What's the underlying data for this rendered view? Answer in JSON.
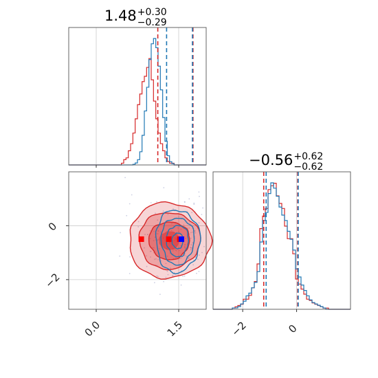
{
  "chart_data": {
    "type": "corner",
    "colors": {
      "red": "#d62728",
      "red_fill": "#f08080",
      "blue": "#1f77b4",
      "marker_red": "#ff0000",
      "marker_blue": "#0000ff",
      "grid": "#cccccc",
      "frame": "#555555"
    },
    "grid": true,
    "params": [
      {
        "title_value": "1.48",
        "title_plus": "+0.30",
        "title_minus": "−0.29",
        "range": [
          -0.5,
          2.0
        ],
        "ticks": [
          0.0,
          1.5
        ],
        "tick_labels": [
          "0.0",
          "1.5"
        ],
        "median": 1.48,
        "q_low": 1.19,
        "q_high": 1.78,
        "red_lines": [
          1.12,
          1.76
        ],
        "blue_lines": [
          1.28,
          1.75
        ],
        "red_hist": [
          0,
          0,
          0,
          0,
          0,
          0,
          0,
          0,
          0,
          0,
          0,
          0,
          0,
          0,
          0,
          0,
          0,
          0,
          0,
          0,
          0,
          0,
          0,
          1,
          3,
          4,
          8,
          12,
          18,
          26,
          34,
          40,
          47,
          50,
          55,
          60,
          48,
          36,
          26,
          18,
          12,
          8,
          4,
          2,
          1,
          1,
          0,
          0,
          0,
          0,
          0,
          0,
          0,
          0,
          0,
          0,
          0,
          0,
          0,
          0
        ],
        "blue_hist": [
          0,
          0,
          0,
          0,
          0,
          0,
          0,
          0,
          0,
          0,
          0,
          0,
          0,
          0,
          0,
          0,
          0,
          0,
          0,
          0,
          0,
          0,
          0,
          0,
          0,
          0,
          0,
          0,
          1,
          3,
          8,
          20,
          45,
          82,
          118,
          160,
          184,
          192,
          178,
          150,
          114,
          72,
          36,
          14,
          5,
          2,
          0,
          0,
          0,
          0,
          0,
          0,
          0,
          0,
          0,
          0,
          0,
          0,
          0,
          0
        ]
      },
      {
        "title_value": "−0.56",
        "title_plus": "+0.62",
        "title_minus": "−0.62",
        "range": [
          -3.1,
          2.0
        ],
        "ticks": [
          -2,
          0
        ],
        "tick_labels": [
          "−2",
          "0"
        ],
        "median": -0.56,
        "q_low": -1.18,
        "q_high": 0.06,
        "red_lines": [
          -1.22,
          0.04
        ],
        "blue_lines": [
          -1.13,
          0.06
        ],
        "red_hist": [
          0,
          0,
          0,
          0,
          0,
          0,
          0,
          1,
          2,
          3,
          4,
          8,
          8,
          11,
          17,
          22,
          36,
          64,
          74,
          80,
          95,
          98,
          100,
          90,
          84,
          80,
          66,
          56,
          56,
          44,
          24,
          20,
          16,
          12,
          8,
          7,
          5,
          4,
          3,
          2,
          1,
          1,
          0,
          0,
          0,
          0,
          0,
          0,
          0,
          0
        ],
        "blue_hist": [
          0,
          0,
          0,
          0,
          0,
          0,
          0,
          1,
          1,
          2,
          4,
          6,
          10,
          12,
          16,
          20,
          28,
          50,
          66,
          72,
          86,
          94,
          90,
          84,
          76,
          70,
          66,
          58,
          52,
          44,
          30,
          24,
          18,
          14,
          10,
          7,
          5,
          4,
          3,
          2,
          1,
          0,
          0,
          0,
          0,
          0,
          0,
          0,
          0,
          0
        ]
      }
    ],
    "joint": {
      "markers": [
        {
          "x": 0.82,
          "y": -0.5,
          "color": "red"
        },
        {
          "x": 1.32,
          "y": -0.5,
          "color": "red"
        },
        {
          "x": 1.52,
          "y": -0.5,
          "color": "red"
        },
        {
          "x": 1.55,
          "y": -0.5,
          "color": "blue"
        }
      ],
      "red_center": [
        1.33,
        -0.55
      ],
      "red_sigma": [
        0.37,
        0.7
      ],
      "blue_center": [
        1.48,
        -0.56
      ],
      "blue_sigma": [
        0.2,
        0.58
      ]
    }
  }
}
